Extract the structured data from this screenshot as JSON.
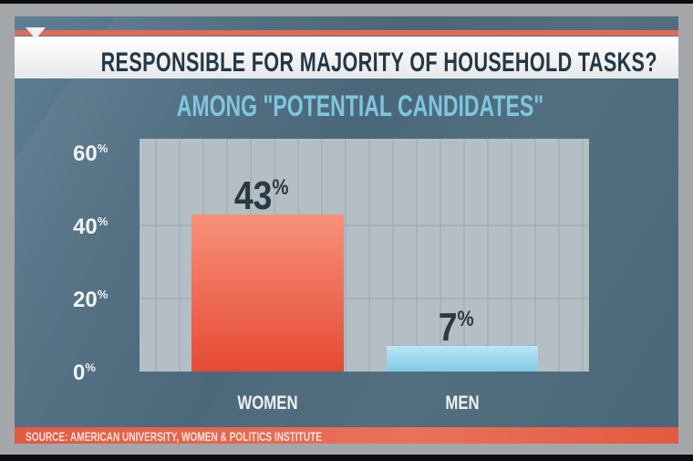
{
  "title": "RESPONSIBLE FOR MAJORITY OF HOUSEHOLD TASKS?",
  "subtitle": "AMONG \"POTENTIAL CANDIDATES\"",
  "source": "SOURCE: AMERICAN UNIVERSITY, WOMEN & POLITICS INSTITUTE",
  "colors": {
    "women_bar": "#ea5a43",
    "men_bar": "#8fd2ea",
    "accent": "#e26a55",
    "background": "#4e6d80"
  },
  "chart_data": {
    "type": "bar",
    "title": "RESPONSIBLE FOR MAJORITY OF HOUSEHOLD TASKS?",
    "subtitle": "AMONG \"POTENTIAL CANDIDATES\"",
    "categories": [
      "WOMEN",
      "MEN"
    ],
    "values": [
      43,
      7
    ],
    "data_labels": [
      "43",
      "7"
    ],
    "unit": "%",
    "yticks": [
      "0",
      "20",
      "40",
      "60"
    ],
    "ylim": [
      0,
      60
    ],
    "grid": true,
    "xlabel": "",
    "ylabel": ""
  }
}
